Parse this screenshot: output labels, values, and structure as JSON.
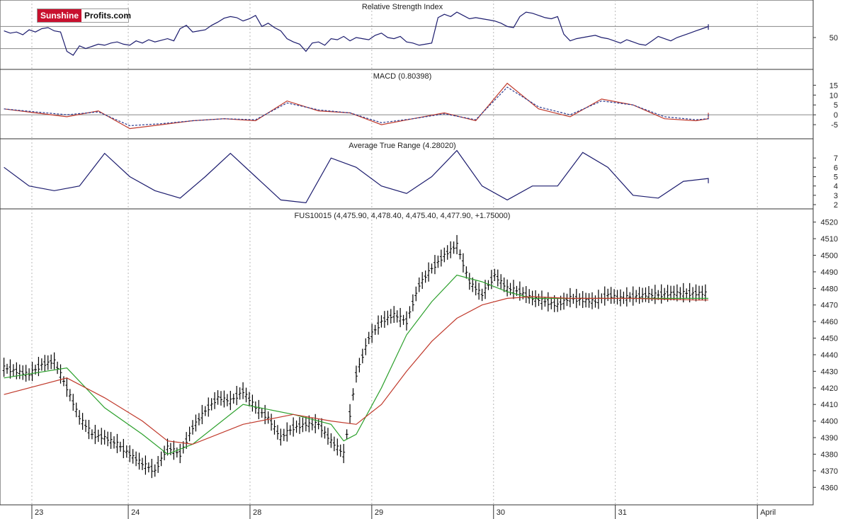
{
  "branding": {
    "logo_part1": "Sunshine",
    "logo_part2": "Profits.com"
  },
  "chart_data": [
    {
      "type": "line",
      "title": "Relative Strength Index",
      "ylim": [
        0,
        100
      ],
      "yticks": [
        50
      ],
      "reference_lines": [
        30,
        70
      ],
      "series": [
        {
          "color": "#1c1c6e",
          "x": [
            0,
            1,
            2,
            3,
            4,
            5,
            6,
            7,
            8,
            9,
            10,
            11,
            12,
            13,
            14,
            15,
            16,
            17,
            18,
            19,
            20,
            21,
            22,
            23,
            24,
            25,
            26,
            27,
            28,
            29,
            30,
            31,
            32,
            33,
            34,
            35,
            36,
            37,
            38,
            39,
            40,
            41,
            42,
            43,
            44,
            45,
            46,
            47,
            48,
            49,
            50,
            51,
            52,
            53,
            54,
            55,
            56,
            57,
            58,
            59,
            60,
            61,
            62,
            63,
            64,
            65,
            66,
            67,
            68,
            69,
            70,
            71,
            72,
            73,
            74,
            75,
            76,
            77,
            78,
            79,
            80,
            81,
            82,
            83,
            84,
            85,
            86,
            87,
            88,
            89,
            90,
            91,
            92,
            93,
            94,
            95,
            96,
            97,
            98,
            99,
            100,
            101,
            102,
            103,
            104,
            105,
            106,
            107,
            108,
            109,
            110,
            111,
            112,
            113,
            114,
            115,
            116,
            117,
            118,
            119
          ],
          "values": [
            62,
            58,
            60,
            55,
            64,
            60,
            66,
            68,
            62,
            60,
            25,
            18,
            35,
            30,
            34,
            38,
            36,
            40,
            42,
            38,
            36,
            44,
            40,
            46,
            42,
            45,
            48,
            44,
            66,
            72,
            60,
            62,
            64,
            72,
            78,
            85,
            88,
            86,
            80,
            84,
            90,
            70,
            76,
            68,
            62,
            48,
            42,
            38,
            25,
            40,
            42,
            36,
            48,
            46,
            52,
            44,
            50,
            48,
            46,
            54,
            58,
            50,
            48,
            52,
            42,
            40,
            36,
            38,
            40,
            86,
            92,
            88,
            96,
            90,
            84,
            86,
            84,
            82,
            80,
            76,
            70,
            68,
            88,
            96,
            94,
            90,
            86,
            84,
            88,
            56,
            44,
            48,
            50,
            52,
            54,
            50,
            48,
            44,
            40,
            46,
            42,
            38,
            36,
            44,
            52,
            48,
            44,
            50,
            54,
            58,
            62,
            66,
            70,
            64,
            68,
            64,
            66,
            70,
            74,
            70
          ]
        }
      ]
    },
    {
      "type": "line",
      "title": "MACD (0.80398)",
      "ylim": [
        -10,
        18
      ],
      "yticks": [
        15,
        10,
        5,
        0,
        -5
      ],
      "reference_lines": [
        0
      ],
      "series": [
        {
          "color": "#c0392b",
          "x": [
            0,
            5,
            10,
            15,
            20,
            25,
            30,
            35,
            40,
            45,
            50,
            55,
            60,
            65,
            70,
            75,
            80,
            85,
            90,
            95,
            100,
            105,
            110,
            115,
            119
          ],
          "values": [
            3,
            1,
            -1,
            2,
            -7,
            -5,
            -3,
            -2,
            -3,
            7,
            2,
            1,
            -5,
            -2,
            1,
            -3,
            16,
            3,
            -1,
            8,
            5,
            -2,
            -3,
            -2,
            1
          ]
        },
        {
          "color": "#2b3a8f",
          "x": [
            0,
            5,
            10,
            15,
            20,
            25,
            30,
            35,
            40,
            45,
            50,
            55,
            60,
            65,
            70,
            75,
            80,
            85,
            90,
            95,
            100,
            105,
            110,
            115,
            119
          ],
          "values": [
            3,
            1.5,
            0,
            1.5,
            -5.5,
            -4.5,
            -3,
            -2,
            -2.5,
            6,
            2.5,
            1,
            -4,
            -2,
            0.5,
            -2.5,
            14,
            4,
            0,
            7,
            5,
            -1,
            -2.5,
            -2,
            0.5
          ]
        }
      ]
    },
    {
      "type": "line",
      "title": "Average True Range (4.28020)",
      "ylim": [
        2,
        8
      ],
      "yticks": [
        7,
        6,
        5,
        4,
        3,
        2
      ],
      "series": [
        {
          "color": "#1c1c6e",
          "x": [
            0,
            4,
            8,
            12,
            16,
            20,
            24,
            28,
            32,
            36,
            40,
            44,
            48,
            52,
            56,
            60,
            64,
            68,
            72,
            76,
            80,
            84,
            88,
            92,
            96,
            100,
            104,
            108,
            112,
            116,
            119
          ],
          "values": [
            6,
            4,
            3.5,
            4,
            7.5,
            5,
            3.5,
            2.7,
            5,
            7.5,
            5,
            2.5,
            2.2,
            7,
            6,
            4,
            3.2,
            5,
            7.8,
            4,
            2.5,
            4,
            4,
            7.6,
            6,
            3,
            2.7,
            4.5,
            4.8,
            4.4,
            4.3
          ]
        }
      ]
    },
    {
      "type": "line",
      "title": "FUS10015 (4,475.90, 4,478.40, 4,475.40, 4,477.90, +1.75000)",
      "ylim": [
        4352,
        4522
      ],
      "yticks": [
        4520,
        4510,
        4500,
        4490,
        4480,
        4470,
        4460,
        4450,
        4440,
        4430,
        4420,
        4410,
        4400,
        4390,
        4380,
        4370,
        4360
      ],
      "x_labels": [
        "23",
        "24",
        "28",
        "29",
        "30",
        "31",
        "April"
      ],
      "series": [
        {
          "color": "#000000",
          "x": [
            0,
            2,
            4,
            6,
            8,
            10,
            12,
            14,
            16,
            18,
            20,
            22,
            24,
            26,
            28,
            30,
            32,
            34,
            36,
            38,
            40,
            42,
            44,
            46,
            48,
            50,
            52,
            54,
            56,
            58,
            60,
            62,
            64,
            66,
            68,
            70,
            72,
            74,
            76,
            78,
            80,
            82,
            84,
            86,
            88,
            90,
            92,
            94,
            96,
            98,
            100,
            102,
            104,
            106,
            108,
            110,
            112,
            114,
            116,
            118,
            119
          ],
          "values": [
            4432,
            4430,
            4428,
            4434,
            4436,
            4420,
            4402,
            4392,
            4390,
            4386,
            4380,
            4374,
            4370,
            4384,
            4380,
            4396,
            4406,
            4414,
            4412,
            4418,
            4408,
            4402,
            4390,
            4396,
            4398,
            4398,
            4388,
            4380,
            4428,
            4450,
            4460,
            4464,
            4460,
            4482,
            4492,
            4500,
            4506,
            4484,
            4476,
            4488,
            4480,
            4478,
            4474,
            4472,
            4470,
            4474,
            4473,
            4472,
            4476,
            4474,
            4475,
            4476,
            4476,
            4477,
            4477,
            4477,
            4477,
            4477,
            4477,
            4477,
            4478
          ]
        },
        {
          "color": "#2ca02c",
          "x": [
            0,
            10,
            16,
            22,
            26,
            30,
            38,
            46,
            52,
            54,
            56,
            60,
            64,
            68,
            72,
            76,
            80,
            84,
            90,
            100,
            110,
            119
          ],
          "values": [
            4426,
            4432,
            4408,
            4392,
            4380,
            4386,
            4410,
            4404,
            4398,
            4388,
            4392,
            4420,
            4452,
            4472,
            4488,
            4484,
            4478,
            4474,
            4474,
            4474,
            4474,
            4474
          ]
        },
        {
          "color": "#c0392b",
          "x": [
            0,
            10,
            16,
            22,
            26,
            30,
            38,
            46,
            52,
            56,
            60,
            64,
            68,
            72,
            76,
            80,
            84,
            90,
            100,
            110,
            119
          ],
          "values": [
            4416,
            4426,
            4414,
            4400,
            4388,
            4386,
            4398,
            4404,
            4400,
            4398,
            4410,
            4430,
            4448,
            4462,
            4470,
            4474,
            4475,
            4474,
            4474,
            4473,
            4473
          ]
        }
      ]
    }
  ]
}
